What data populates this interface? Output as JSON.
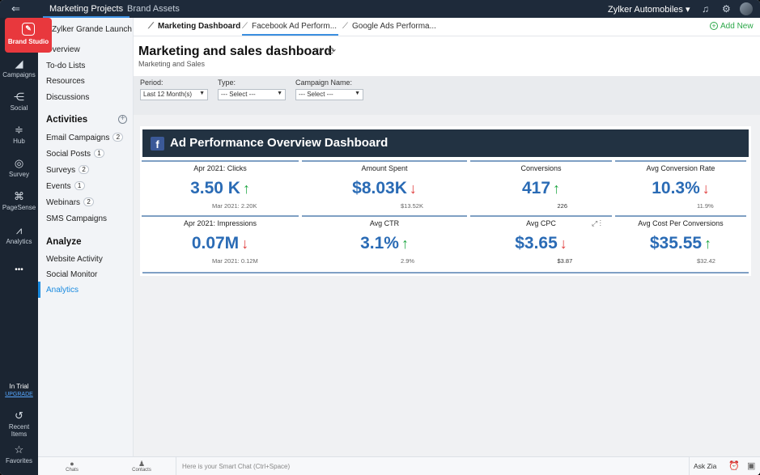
{
  "topbar": {
    "tabs": [
      "Marketing Projects",
      "Brand Assets"
    ],
    "active_tab": "Marketing Projects",
    "org_name": "Zylker Automobiles ▾"
  },
  "rail": {
    "brand_label": "Brand Studio",
    "items": [
      "Campaigns",
      "Social",
      "Hub",
      "Survey",
      "PageSense",
      "Analytics",
      "•••"
    ],
    "trial_label": "In Trial",
    "upgrade_label": "UPGRADE",
    "bottom_items": [
      "Recent Items",
      "Favorites"
    ]
  },
  "project_nav": {
    "project_title": "Zylker Grande Launch",
    "links": [
      "Overview",
      "To-do Lists",
      "Resources",
      "Discussions"
    ],
    "activities_title": "Activities",
    "activities": [
      {
        "label": "Email Campaigns",
        "count": "2"
      },
      {
        "label": "Social Posts",
        "count": "1"
      },
      {
        "label": "Surveys",
        "count": "2"
      },
      {
        "label": "Events",
        "count": "1"
      },
      {
        "label": "Webinars",
        "count": "2"
      },
      {
        "label": "SMS Campaigns",
        "count": ""
      }
    ],
    "analyze_title": "Analyze",
    "analyze": [
      "Website Activity",
      "Social Monitor",
      "Analytics"
    ]
  },
  "dashboard_tabs": {
    "tabs": [
      "Marketing Dashboard",
      "Facebook Ad Perform...",
      "Google Ads Performa..."
    ],
    "add_new": "Add New"
  },
  "header": {
    "title": "Marketing and sales dashboard",
    "subtitle": "Marketing and Sales"
  },
  "filters": {
    "period_label": "Period:",
    "period_value": "Last 12 Month(s)",
    "type_label": "Type:",
    "type_value": "--- Select ---",
    "campaign_label": "Campaign Name:",
    "campaign_value": "--- Select ---"
  },
  "dashboard": {
    "title": "Ad Performance Overview Dashboard",
    "cards": [
      {
        "title": "Apr 2021: Clicks",
        "value": "3.50 K",
        "trend": "up",
        "compare": "Mar 2021: 2.20K"
      },
      {
        "title": "Amount Spent",
        "value": "$8.03K",
        "trend": "down",
        "compare": "$13.52K"
      },
      {
        "title": "Conversions",
        "value": "417",
        "trend": "up",
        "compare": "226"
      },
      {
        "title": "Avg Conversion Rate",
        "value": "10.3%",
        "trend": "down",
        "compare": "11.9%"
      },
      {
        "title": "Apr 2021: Impressions",
        "value": "0.07M",
        "trend": "down",
        "compare": "Mar 2021: 0.12M"
      },
      {
        "title": "Avg CTR",
        "value": "3.1%",
        "trend": "up",
        "compare": "2.9%"
      },
      {
        "title": "Avg CPC",
        "value": "$3.65",
        "trend": "down",
        "compare": "$3.87"
      },
      {
        "title": "Avg Cost Per Conversions",
        "value": "$35.55",
        "trend": "up",
        "compare": "$32.42"
      }
    ]
  },
  "bottombar": {
    "chats": "Chats",
    "contacts": "Contacts",
    "chat_placeholder": "Here is your Smart Chat (Ctrl+Space)",
    "ask_zia": "Ask Zia"
  },
  "colors": {
    "accent": "#3b8fe0",
    "brand": "#e8383d",
    "value_blue": "#2a6bb5",
    "up_green": "#22a845",
    "down_red": "#e03a3a"
  }
}
